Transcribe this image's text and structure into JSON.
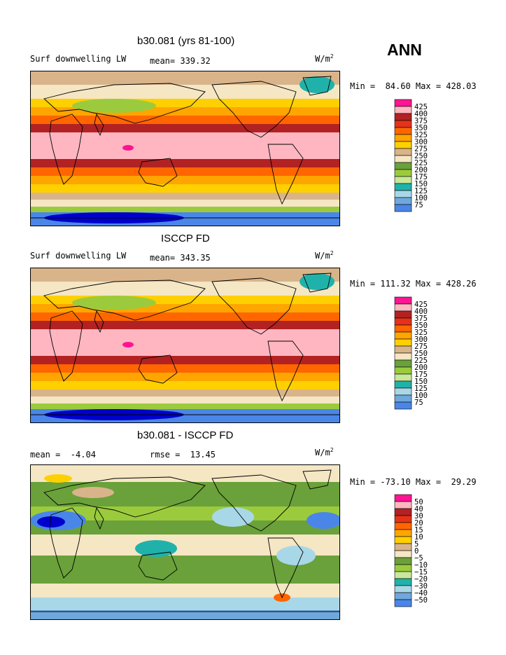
{
  "season": "ANN",
  "palette": {
    "contours": [
      "#9a72d6",
      "#0000cc",
      "#2255cc",
      "#4a86e8",
      "#6fa8dc",
      "#a8d8e8",
      "#20b2aa",
      "#c8e89a",
      "#9bcb3c",
      "#6aa13a",
      "#f5e6c4",
      "#d9b48a",
      "#ffd000",
      "#ffa500",
      "#ff6600",
      "#e63219",
      "#b22222",
      "#ffb6c1",
      "#ff1493"
    ],
    "land_outline": "#000000"
  },
  "panels": [
    {
      "title": "b30.081 (yrs 81-100)",
      "left_label": "Surf downwelling LW",
      "stat1": "mean= 339.32",
      "stat2": "",
      "units": "W/m",
      "units_sup": "2",
      "minmax": "Min =  84.60 Max = 428.03",
      "cbar_labels": [
        "425",
        "400",
        "375",
        "350",
        "325",
        "300",
        "275",
        "250",
        "225",
        "200",
        "175",
        "150",
        "125",
        "100",
        "75"
      ],
      "cbar_colors": [
        "#ff1493",
        "#ffb6c1",
        "#b22222",
        "#e63219",
        "#ff6600",
        "#ffa500",
        "#ffd000",
        "#d9b48a",
        "#f5e6c4",
        "#6aa13a",
        "#9bcb3c",
        "#c8e89a",
        "#20b2aa",
        "#a8d8e8",
        "#6fa8dc",
        "#4a86e8",
        "#0000cc",
        "#9a72d6"
      ]
    },
    {
      "title": "ISCCP FD",
      "left_label": "Surf downwelling LW",
      "stat1": "mean= 343.35",
      "stat2": "",
      "units": "W/m",
      "units_sup": "2",
      "minmax": "Min = 111.32 Max = 428.26",
      "cbar_labels": [
        "425",
        "400",
        "375",
        "350",
        "325",
        "300",
        "275",
        "250",
        "225",
        "200",
        "175",
        "150",
        "125",
        "100",
        "75"
      ],
      "cbar_colors": [
        "#ff1493",
        "#ffb6c1",
        "#b22222",
        "#e63219",
        "#ff6600",
        "#ffa500",
        "#ffd000",
        "#d9b48a",
        "#f5e6c4",
        "#6aa13a",
        "#9bcb3c",
        "#c8e89a",
        "#20b2aa",
        "#a8d8e8",
        "#6fa8dc",
        "#4a86e8",
        "#0000cc",
        "#9a72d6"
      ]
    },
    {
      "title": "b30.081 - ISCCP FD",
      "left_label": "mean =  -4.04",
      "stat1": "rmse =  13.45",
      "stat2": "",
      "units": "W/m",
      "units_sup": "2",
      "minmax": "Min = -73.10 Max =  29.29",
      "cbar_labels": [
        "50",
        "40",
        "30",
        "20",
        "15",
        "10",
        "5",
        "0",
        "−5",
        "−10",
        "−15",
        "−20",
        "−30",
        "−40",
        "−50"
      ],
      "cbar_colors": [
        "#ff1493",
        "#ffb6c1",
        "#b22222",
        "#e63219",
        "#ff6600",
        "#ffa500",
        "#ffd000",
        "#d9b48a",
        "#f5e6c4",
        "#6aa13a",
        "#9bcb3c",
        "#c8e89a",
        "#20b2aa",
        "#a8d8e8",
        "#6fa8dc",
        "#4a86e8",
        "#0000cc",
        "#9a72d6"
      ]
    }
  ],
  "chart_data": [
    {
      "type": "heatmap",
      "title": "b30.081 (yrs 81-100)",
      "subtitle": "Surf downwelling LW",
      "mean": 339.32,
      "min": 84.6,
      "max": 428.03,
      "units": "W/m2",
      "levels": [
        75,
        100,
        125,
        150,
        175,
        200,
        225,
        250,
        275,
        300,
        325,
        350,
        375,
        400,
        425
      ]
    },
    {
      "type": "heatmap",
      "title": "ISCCP FD",
      "subtitle": "Surf downwelling LW",
      "mean": 343.35,
      "min": 111.32,
      "max": 428.26,
      "units": "W/m2",
      "levels": [
        75,
        100,
        125,
        150,
        175,
        200,
        225,
        250,
        275,
        300,
        325,
        350,
        375,
        400,
        425
      ]
    },
    {
      "type": "heatmap",
      "title": "b30.081 - ISCCP FD",
      "mean": -4.04,
      "rmse": 13.45,
      "min": -73.1,
      "max": 29.29,
      "units": "W/m2",
      "levels": [
        -50,
        -40,
        -30,
        -20,
        -15,
        -10,
        -5,
        0,
        5,
        10,
        15,
        20,
        30,
        40,
        50
      ]
    }
  ]
}
